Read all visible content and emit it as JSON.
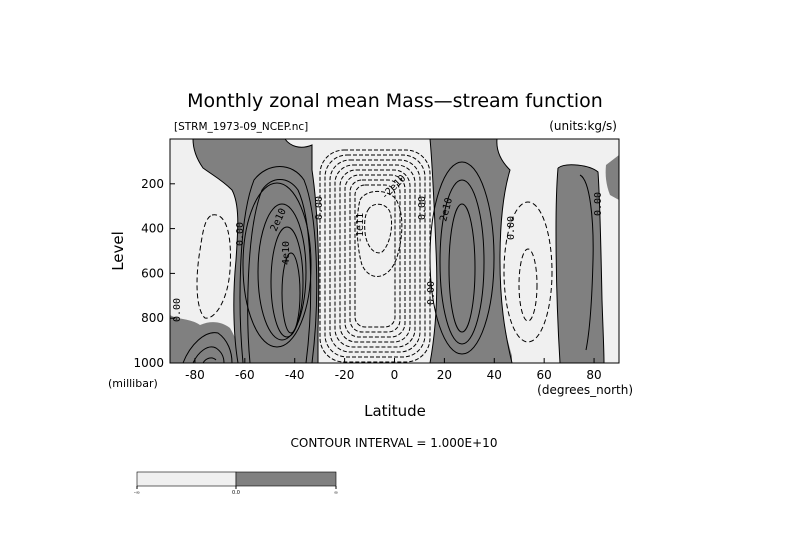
{
  "chart_data": {
    "type": "contour",
    "title": "Monthly zonal mean Mass—stream function",
    "file_label": "[STRM_1973-09_NCEP.nc]",
    "units_label": "(units:kg/s)",
    "xlabel": "Latitude",
    "x_units": "(degrees_north)",
    "ylabel": "Level",
    "y_units": "(millibar)",
    "xlim": [
      -90,
      90
    ],
    "ylim": [
      1000,
      0
    ],
    "x_ticks": [
      -80,
      -60,
      -40,
      -20,
      0,
      20,
      40,
      60,
      80
    ],
    "x_tick_labels": [
      "-80",
      "-60",
      "-40",
      "-20",
      "0",
      "20",
      "40",
      "60",
      "80"
    ],
    "y_ticks": [
      200,
      400,
      600,
      800,
      1000
    ],
    "y_tick_labels": [
      "200",
      "400",
      "600",
      "800",
      "1000"
    ],
    "contour_interval_text": "CONTOUR INTERVAL = 1.000E+10",
    "contour_labels": [
      "0.00",
      "2e10",
      "4e10",
      "-1e11",
      "-2e10",
      "0.00",
      "0.00",
      "2e10",
      "0.00",
      "0.00",
      "0.00",
      "0.00"
    ],
    "shading": {
      "negative_color": "#f0f0f0",
      "positive_color": "#808080",
      "colorbar_labels": [
        "-∞",
        "0.0",
        "∞"
      ]
    },
    "cells": [
      {
        "name": "southern-polar-cell",
        "lat_center": -73,
        "lev_center": 870,
        "sign": "positive",
        "peak": 20000000000.0
      },
      {
        "name": "southern-ferrel-cell",
        "lat_center": -75,
        "lev_center": 500,
        "sign": "negative",
        "peak": -10000000000.0
      },
      {
        "name": "southern-hadley-cell",
        "lat_center": -40,
        "lev_center": 550,
        "sign": "positive",
        "peak": 45000000000.0
      },
      {
        "name": "winter-hadley-cell",
        "lat_center": 0,
        "lev_center": 550,
        "sign": "negative",
        "peak": -120000000000.0
      },
      {
        "name": "northern-hadley-cell",
        "lat_center": 25,
        "lev_center": 500,
        "sign": "positive",
        "peak": 30000000000.0
      },
      {
        "name": "northern-ferrel-cell",
        "lat_center": 52,
        "lev_center": 550,
        "sign": "negative",
        "peak": -20000000000.0
      },
      {
        "name": "northern-polar-cell",
        "lat_center": 75,
        "lev_center": 500,
        "sign": "positive",
        "peak": 10000000000.0
      }
    ]
  }
}
